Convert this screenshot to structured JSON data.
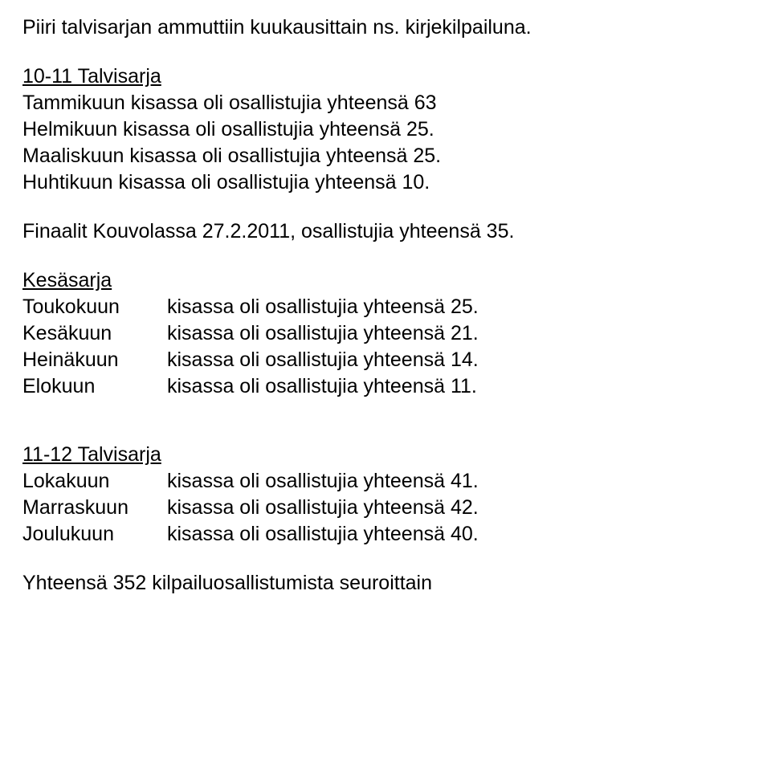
{
  "intro": "Piiri talvisarjan ammuttiin kuukausittain ns. kirjekilpailuna.",
  "winter1011": {
    "heading": "10-11 Talvisarja",
    "lines": [
      "Tammikuun kisassa oli osallistujia yhteensä 63",
      "Helmikuun kisassa oli osallistujia yhteensä 25.",
      "Maaliskuun kisassa oli osallistujia yhteensä 25.",
      "Huhtikuun kisassa oli osallistujia yhteensä 10."
    ]
  },
  "finals": "Finaalit Kouvolassa 27.2.2011, osallistujia yhteensä 35.",
  "summer": {
    "heading": "Kesäsarja",
    "rows": [
      {
        "month": "Toukokuun",
        "rest": "kisassa oli osallistujia yhteensä 25."
      },
      {
        "month": "Kesäkuun",
        "rest": "kisassa oli osallistujia yhteensä 21."
      },
      {
        "month": "Heinäkuun",
        "rest": "kisassa oli osallistujia yhteensä 14."
      },
      {
        "month": "Elokuun",
        "rest": "kisassa oli osallistujia yhteensä 11."
      }
    ]
  },
  "winter1112": {
    "heading": "11-12 Talvisarja",
    "rows": [
      {
        "month": "Lokakuun",
        "rest": "kisassa oli osallistujia yhteensä 41."
      },
      {
        "month": "Marraskuun",
        "rest": "kisassa oli osallistujia yhteensä 42."
      },
      {
        "month": "Joulukuun",
        "rest": "kisassa oli osallistujia yhteensä 40."
      }
    ]
  },
  "total": "Yhteensä 352 kilpailuosallistumista seuroittain"
}
